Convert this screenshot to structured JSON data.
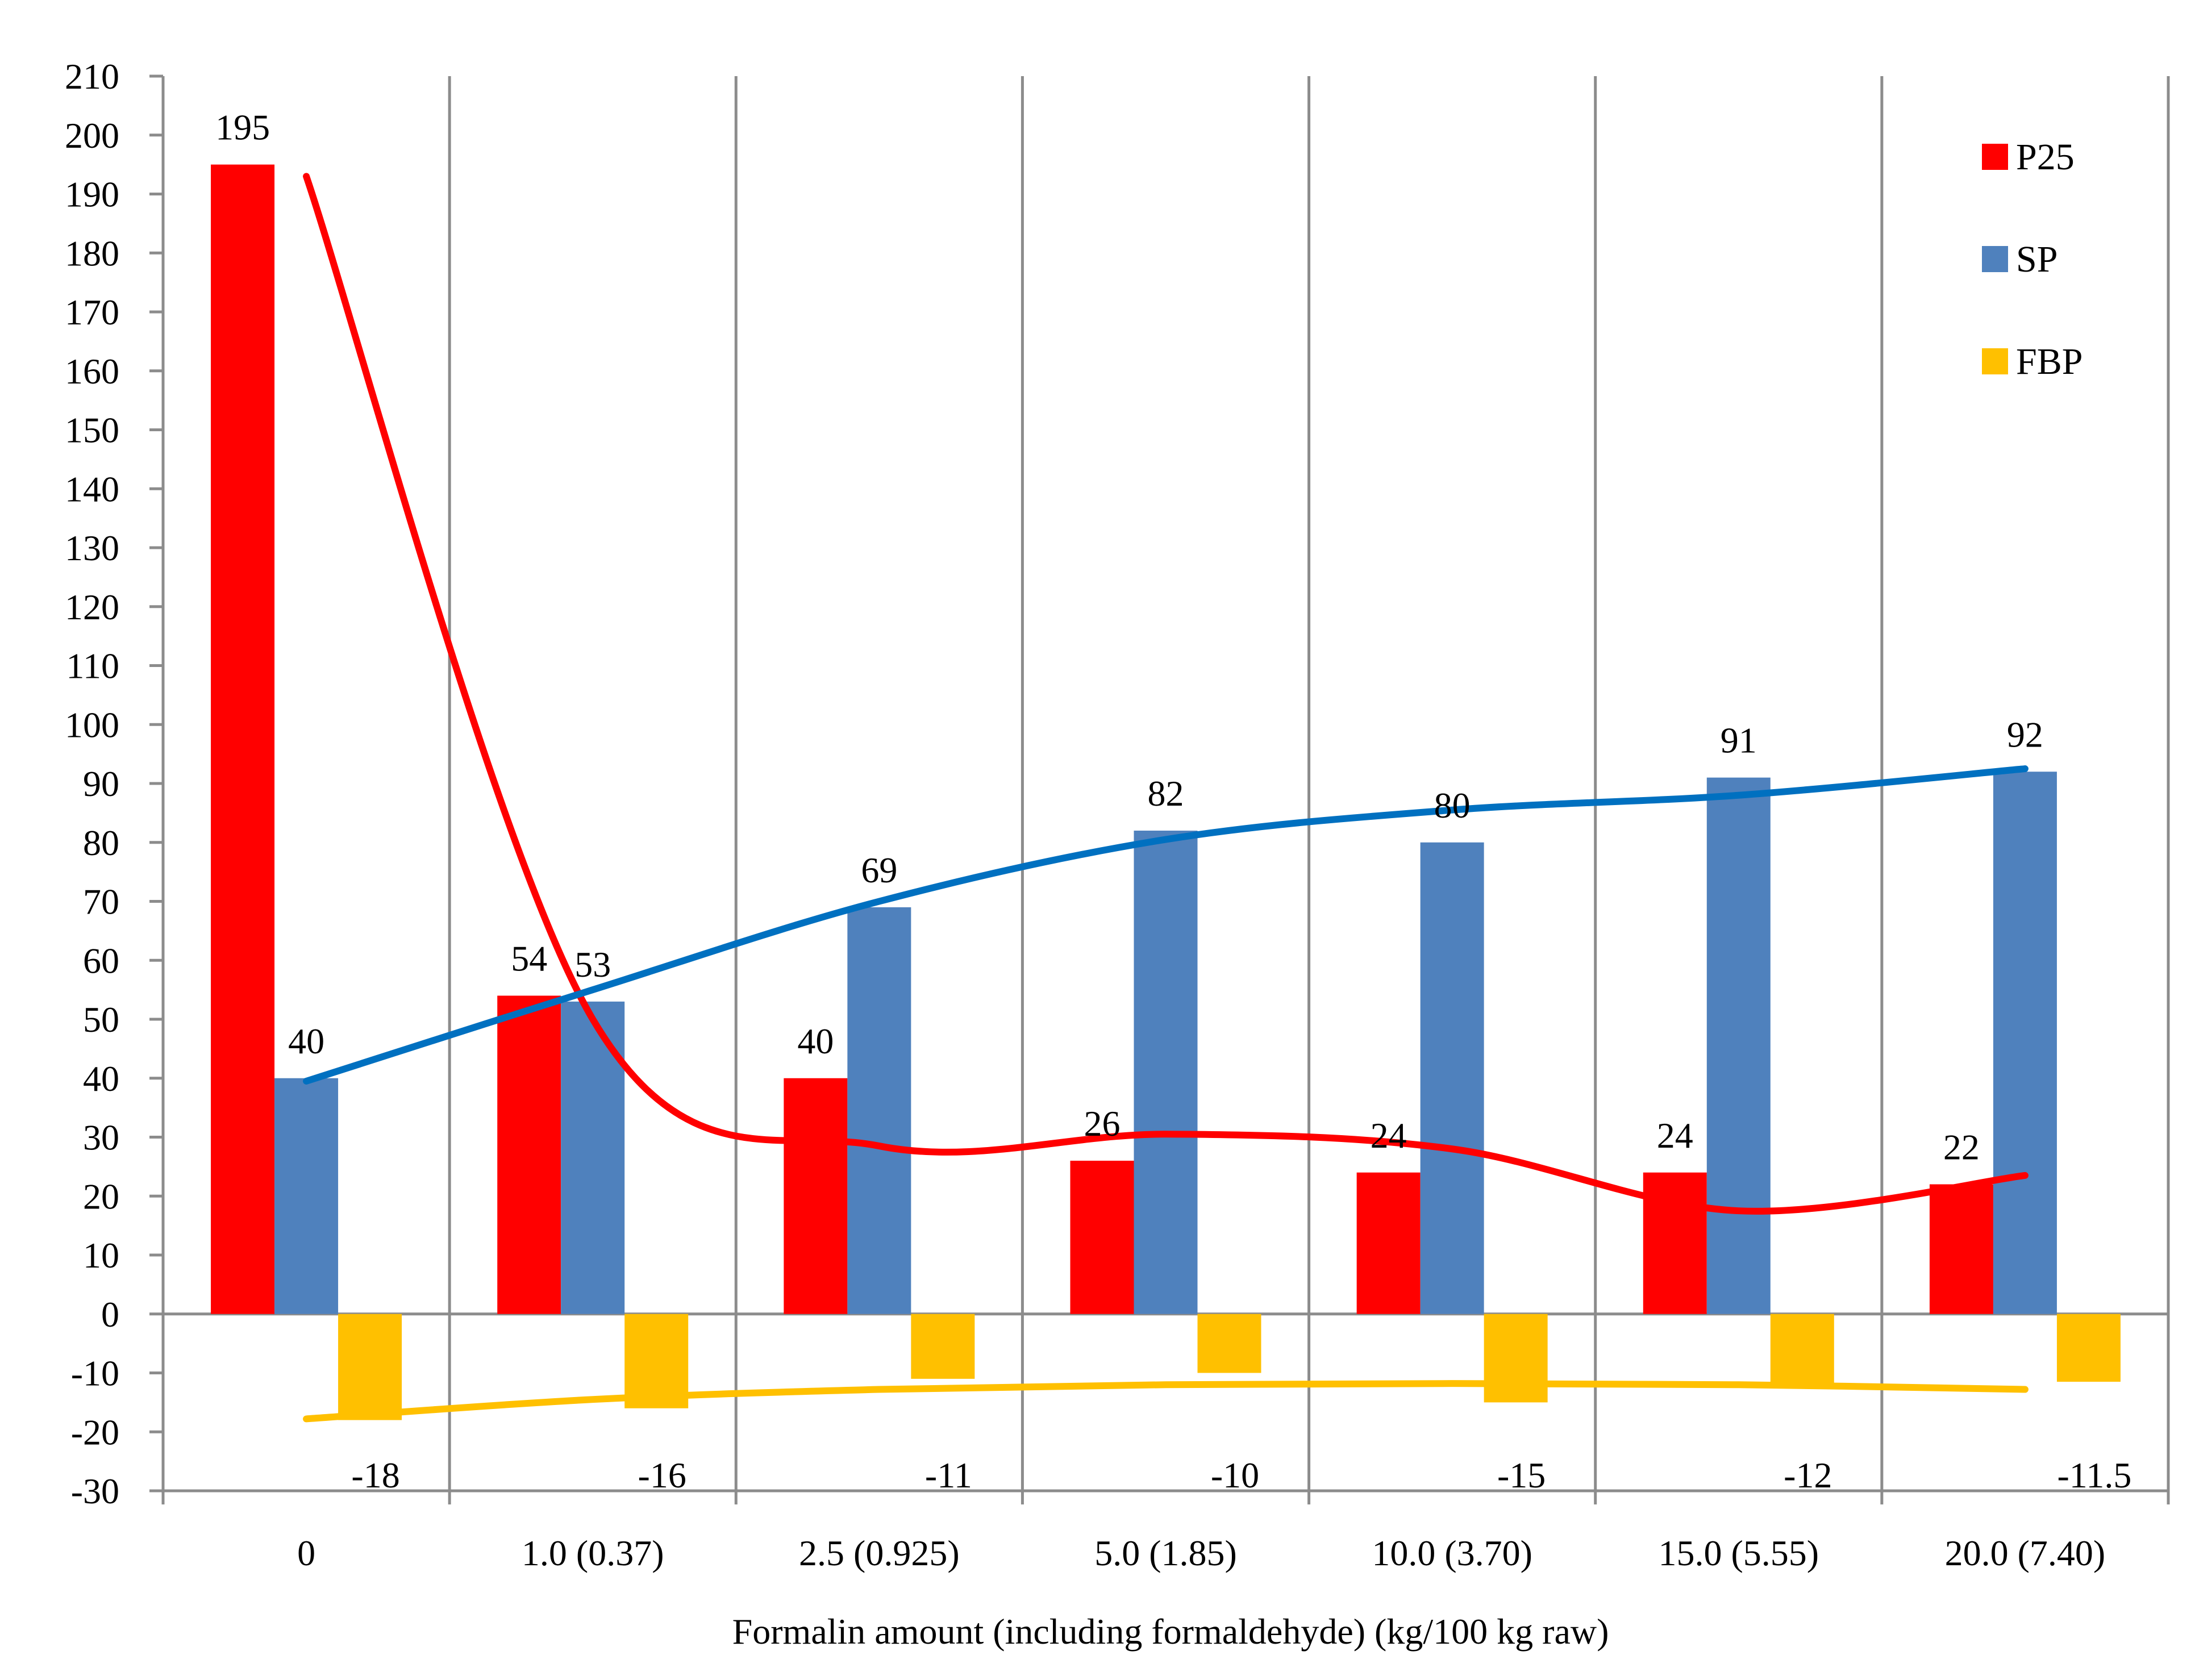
{
  "chart_data": {
    "type": "bar",
    "title": "",
    "xlabel": "Formalin amount (including formaldehyde) (kg/100 kg raw)",
    "ylabel": "",
    "ylim": [
      -30,
      210
    ],
    "ytick_step": 10,
    "grid": "vertical",
    "legend_position": "top-right",
    "categories": [
      "0",
      "1.0 (0.37)",
      "2.5 (0.925)",
      "5.0 (1.85)",
      "10.0 (3.70)",
      "15.0 (5.55)",
      "20.0 (7.40)"
    ],
    "series": [
      {
        "name": "P25",
        "color": "#ff0000",
        "values": [
          195,
          54,
          40,
          26,
          24,
          24,
          22
        ],
        "labels": [
          "195",
          "54",
          "40",
          "26",
          "24",
          "24",
          "22"
        ],
        "trendline": "polynomial"
      },
      {
        "name": "SP",
        "color": "#4f81bd",
        "trend_color": "#0070c0",
        "values": [
          40,
          53,
          69,
          82,
          80,
          91,
          92
        ],
        "labels": [
          "40",
          "53",
          "69",
          "82",
          "80",
          "91",
          "92"
        ],
        "trendline": "polynomial"
      },
      {
        "name": "FBP",
        "color": "#ffc000",
        "values": [
          -18,
          -16,
          -11,
          -10,
          -15,
          -12,
          -11.5
        ],
        "labels": [
          "-18",
          "-16",
          "-11",
          "-10",
          "-15",
          "-12",
          "-11.5"
        ],
        "trendline": "polynomial"
      }
    ],
    "trendlines": [
      {
        "series": "P25",
        "y": [
          193,
          50,
          28.5,
          30.5,
          28,
          17.5,
          23.5
        ]
      },
      {
        "series": "SP",
        "y": [
          39.5,
          55,
          70,
          80.5,
          85.5,
          88,
          92.5
        ]
      },
      {
        "series": "FBP",
        "y": [
          -17.8,
          -14.5,
          -12.8,
          -12,
          -11.8,
          -12,
          -12.8
        ]
      }
    ]
  }
}
